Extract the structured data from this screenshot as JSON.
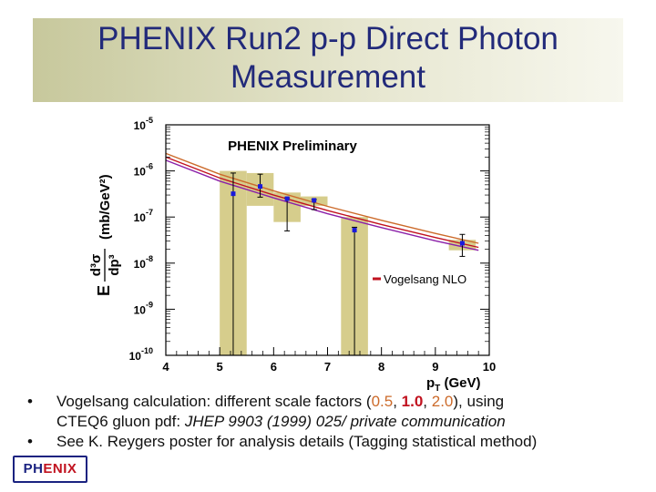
{
  "slide": {
    "title_line1": "PHENIX Run2 p-p Direct Photon",
    "title_line2": "Measurement",
    "bullets": [
      {
        "dot": "•",
        "part1": "Vogelsang calculation: different scale factors (",
        "v1": "0.5",
        "sep1": ", ",
        "v2": "1.0",
        "sep2": ", ",
        "v3": "2.0",
        "part2": "),  using",
        "line2_normal": "CTEQ6 gluon pdf: ",
        "line2_italic": "JHEP 9903 (1999) 025/ private communication"
      },
      {
        "dot": "•",
        "text": "See K. Reygers poster for analysis details (Tagging statistical method)"
      }
    ],
    "logo_text_a": "PH",
    "logo_text_b": "ENIX"
  },
  "chart_data": {
    "type": "scatter",
    "plot_label": "PHENIX Preliminary",
    "legend_label": "Vogelsang NLO",
    "ylabel_prefix": "E",
    "ylabel_num": "d³σ",
    "ylabel_den": "dp³",
    "ylabel_units": "(mb/GeV²)",
    "xlabel": "p",
    "xlabel_sub": "T",
    "xlabel_units": " (GeV)",
    "xlim": [
      4,
      10
    ],
    "ylim_log10": [
      -10,
      -5
    ],
    "yscale": "log",
    "x_ticks": [
      "4",
      "5",
      "6",
      "7",
      "8",
      "9",
      "10"
    ],
    "y_tick_exponents": [
      "-5",
      "-6",
      "-7",
      "-8",
      "-9",
      "-10"
    ],
    "y_tick_base": "10",
    "data_points": [
      {
        "x": 5.25,
        "y": 3.2e-07,
        "sys_lo": 1e-10,
        "sys_hi": 1e-06,
        "stat_lo": 1e-10,
        "stat_hi": 9e-07
      },
      {
        "x": 5.75,
        "y": 4.6e-07,
        "sys_lo": 1.75e-07,
        "sys_hi": 9e-07,
        "stat_lo": 2.7e-07,
        "stat_hi": 8.5e-07
      },
      {
        "x": 6.25,
        "y": 2.5e-07,
        "sys_lo": 7.8e-08,
        "sys_hi": 3.4e-07,
        "stat_lo": 5e-08,
        "stat_hi": 2.6e-07
      },
      {
        "x": 6.75,
        "y": 2.3e-07,
        "sys_lo": 1.75e-07,
        "sys_hi": 2.8e-07,
        "stat_lo": 1.45e-07,
        "stat_hi": 2.4e-07
      },
      {
        "x": 7.5,
        "y": 5.2e-08,
        "sys_lo": 1e-10,
        "sys_hi": 1e-07,
        "stat_lo": 1e-10,
        "stat_hi": 6e-08
      },
      {
        "x": 9.5,
        "y": 2.7e-08,
        "sys_lo": 1.9e-08,
        "sys_hi": 3.2e-08,
        "stat_lo": 1.4e-08,
        "stat_hi": 4.2e-08
      }
    ],
    "nlo_curves": [
      {
        "scale": "0.5",
        "color": "#cc6a2a",
        "x": [
          4,
          5,
          6,
          7,
          8,
          9,
          9.8
        ],
        "y": [
          2.4e-06,
          8.5e-07,
          3.7e-07,
          1.7e-07,
          8.5e-08,
          4.4e-08,
          2.7e-08
        ]
      },
      {
        "scale": "1.0",
        "color": "#c1121f",
        "x": [
          4,
          5,
          6,
          7,
          8,
          9,
          9.8
        ],
        "y": [
          2e-06,
          7e-07,
          3e-07,
          1.38e-07,
          6.9e-08,
          3.6e-08,
          2.2e-08
        ]
      },
      {
        "scale": "2.0",
        "color": "#8b1fa8",
        "x": [
          4,
          5,
          6,
          7,
          8,
          9,
          9.8
        ],
        "y": [
          1.7e-06,
          6e-07,
          2.6e-07,
          1.18e-07,
          5.9e-08,
          3.05e-08,
          1.9e-08
        ]
      }
    ],
    "colors": {
      "points": "#1a1adc",
      "sys_box": "#d6cd8c",
      "axis": "#000000",
      "legend_line": "#c1121f"
    },
    "grid": false
  }
}
